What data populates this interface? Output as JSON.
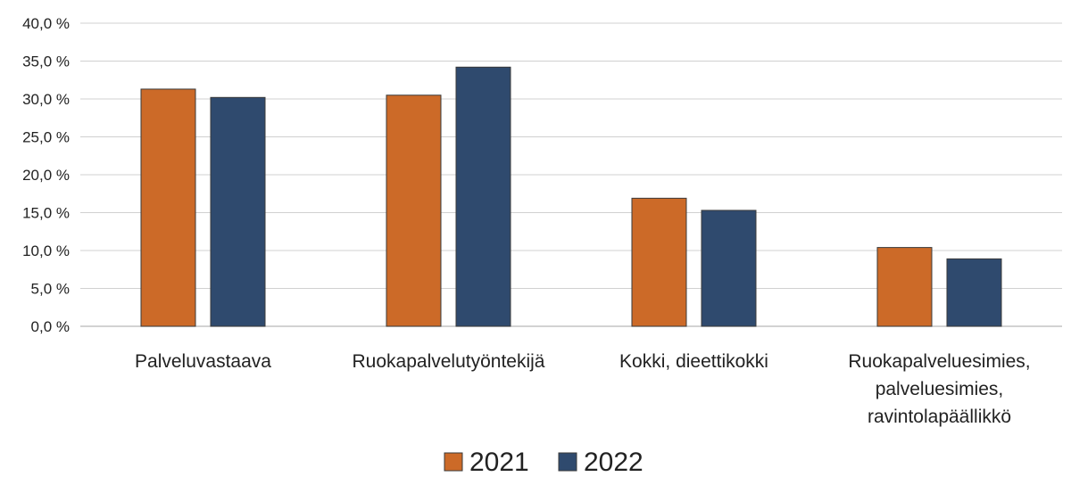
{
  "chart_data": {
    "type": "bar",
    "title": "",
    "xlabel": "",
    "ylabel": "",
    "ylim": [
      0,
      40
    ],
    "yticks": [
      "0,0 %",
      "5,0 %",
      "10,0 %",
      "15,0 %",
      "20,0 %",
      "25,0 %",
      "30,0 %",
      "35,0 %",
      "40,0 %"
    ],
    "grid": true,
    "legend_position": "bottom",
    "categories": [
      [
        "Palveluvastaava"
      ],
      [
        "Ruokapalvelutyöntekijä"
      ],
      [
        "Kokki, dieettikokki"
      ],
      [
        "Ruokapalveluesimies,",
        "palveluesimies,",
        "ravintolapäällikkö"
      ]
    ],
    "series": [
      {
        "name": "2021",
        "color": "#cc6a28",
        "values": [
          31.3,
          30.5,
          16.9,
          10.4
        ]
      },
      {
        "name": "2022",
        "color": "#2f4a6e",
        "values": [
          30.2,
          34.2,
          15.3,
          8.9
        ]
      }
    ]
  }
}
